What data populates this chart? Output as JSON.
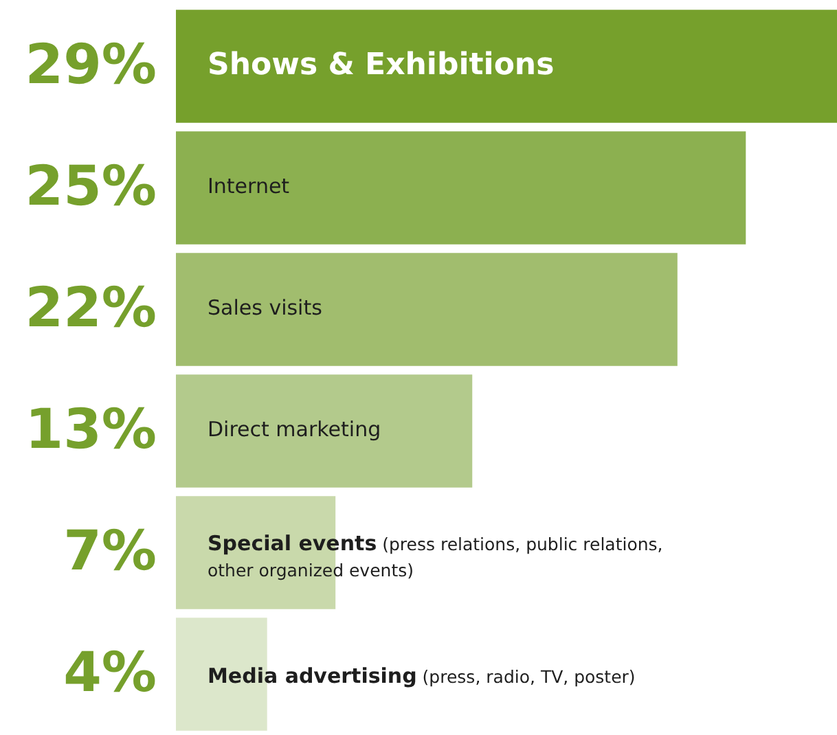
{
  "chart_data": {
    "type": "bar",
    "orientation": "horizontal",
    "categories": [
      "Shows & Exhibitions",
      "Internet",
      "Sales visits",
      "Direct marketing",
      "Special events (press relations, public relations, other organized events)",
      "Media advertising (press, radio, TV, poster)"
    ],
    "values": [
      29,
      25,
      22,
      13,
      7,
      4
    ],
    "value_labels": [
      "29%",
      "25%",
      "22%",
      "13%",
      "7%",
      "4%"
    ],
    "colors": [
      "#76a02c",
      "#8cb050",
      "#a1bd6e",
      "#b3ca8c",
      "#c9d9ab",
      "#dce7cb"
    ],
    "legend": false
  }
}
